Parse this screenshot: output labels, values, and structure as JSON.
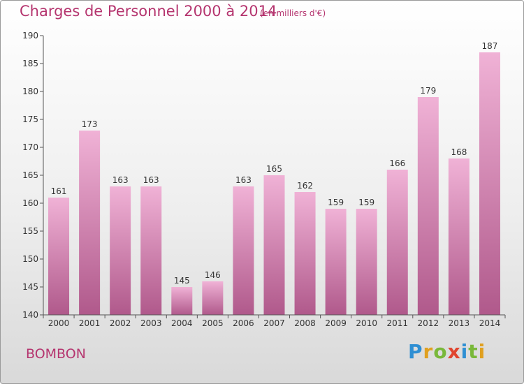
{
  "chart_data": {
    "type": "bar",
    "title": "Charges de Personnel 2000 à 2014",
    "subtitle": "(en milliers d'€)",
    "categories": [
      "2000",
      "2001",
      "2002",
      "2003",
      "2004",
      "2005",
      "2006",
      "2007",
      "2008",
      "2009",
      "2010",
      "2011",
      "2012",
      "2013",
      "2014"
    ],
    "values": [
      161,
      173,
      163,
      163,
      145,
      146,
      163,
      165,
      162,
      159,
      159,
      166,
      179,
      168,
      187
    ],
    "ylim": [
      140,
      190
    ],
    "yticks": [
      140,
      145,
      150,
      155,
      160,
      165,
      170,
      175,
      180,
      185,
      190
    ],
    "grid": false,
    "colors": {
      "bar_light": "#f0b2d6",
      "bar_dark": "#b0598b",
      "text": "#b5356f"
    }
  },
  "footer": {
    "place": "BOMBON"
  },
  "logo": {
    "text": "Proxiti"
  }
}
